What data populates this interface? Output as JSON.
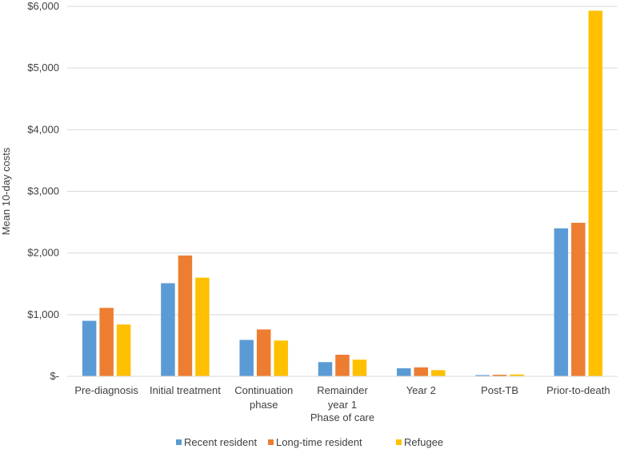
{
  "chart_data": {
    "type": "bar",
    "title": "",
    "xlabel": "Phase of care",
    "ylabel": "Mean 10-day costs",
    "ylim": [
      0,
      6000
    ],
    "yticks": [
      0,
      1000,
      2000,
      3000,
      4000,
      5000,
      6000
    ],
    "ytick_labels": [
      "$-",
      "$1,000",
      "$2,000",
      "$3,000",
      "$4,000",
      "$5,000",
      "$6,000"
    ],
    "grid": true,
    "legend_position": "bottom",
    "categories": [
      [
        "Pre-diagnosis"
      ],
      [
        "Initial treatment"
      ],
      [
        "Continuation",
        "phase"
      ],
      [
        "Remainder",
        "year 1"
      ],
      [
        "Year 2"
      ],
      [
        "Post-TB"
      ],
      [
        "Prior-to-death"
      ]
    ],
    "series": [
      {
        "name": "Recent resident",
        "color": "#5B9BD5",
        "values": [
          900,
          1510,
          590,
          230,
          130,
          20,
          2400
        ]
      },
      {
        "name": "Long-time resident",
        "color": "#ED7D31",
        "values": [
          1110,
          1960,
          760,
          350,
          145,
          25,
          2490
        ]
      },
      {
        "name": "Refugee",
        "color": "#FFC000",
        "values": [
          840,
          1600,
          580,
          270,
          100,
          30,
          5930
        ]
      }
    ]
  }
}
